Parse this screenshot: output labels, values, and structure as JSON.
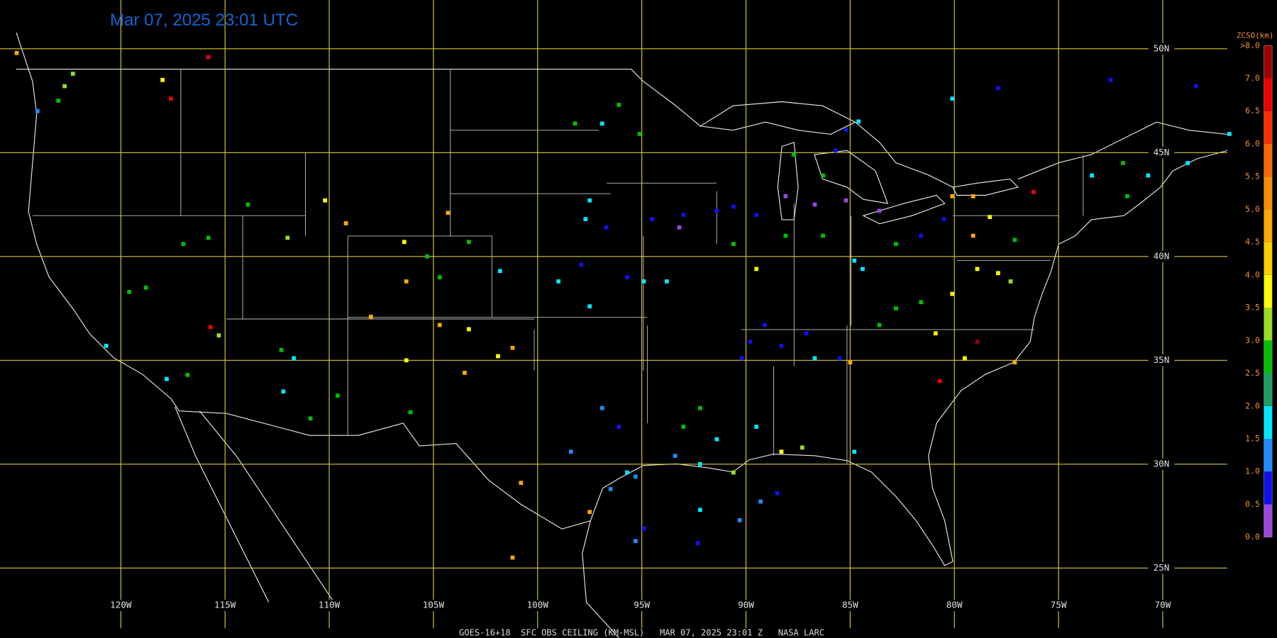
{
  "title": "Mar 07, 2025 23:01 UTC",
  "footer": "GOES-16+18  SFC OBS CEILING (KM-MSL)   MAR 07, 2025 23:01 Z   NASA LARC",
  "map": {
    "lonlim": [
      -125.8,
      -66.9
    ],
    "latlim": [
      22.1,
      52.35
    ],
    "grid_color": "#d8c832",
    "lonticks": [
      {
        "value": -120,
        "label": "120W"
      },
      {
        "value": -115,
        "label": "115W"
      },
      {
        "value": -110,
        "label": "110W"
      },
      {
        "value": -105,
        "label": "105W"
      },
      {
        "value": -100,
        "label": "100W"
      },
      {
        "value": -95,
        "label": "95W"
      },
      {
        "value": -90,
        "label": "90W"
      },
      {
        "value": -85,
        "label": "85W"
      },
      {
        "value": -80,
        "label": "80W"
      },
      {
        "value": -75,
        "label": "75W"
      },
      {
        "value": -70,
        "label": "70W"
      }
    ],
    "latticks": [
      {
        "value": 50,
        "label": "50N"
      },
      {
        "value": 45,
        "label": "45N"
      },
      {
        "value": 40,
        "label": "40N"
      },
      {
        "value": 35,
        "label": "35N"
      },
      {
        "value": 30,
        "label": "30N"
      },
      {
        "value": 25,
        "label": "25N"
      }
    ]
  },
  "colorbar": {
    "title": "ZCSO(km)",
    "ticks": [
      {
        "value": 0,
        "label": "0.0"
      },
      {
        "value": 0.5,
        "label": "0.5"
      },
      {
        "value": 1,
        "label": "1.0"
      },
      {
        "value": 1.5,
        "label": "1.5"
      },
      {
        "value": 2,
        "label": "2.0"
      },
      {
        "value": 2.5,
        "label": "2.5"
      },
      {
        "value": 3,
        "label": "3.0"
      },
      {
        "value": 3.5,
        "label": "3.5"
      },
      {
        "value": 4,
        "label": "4.0"
      },
      {
        "value": 4.5,
        "label": "4.5"
      },
      {
        "value": 5,
        "label": "5.0"
      },
      {
        "value": 5.5,
        "label": "5.5"
      },
      {
        "value": 6,
        "label": "6.0"
      },
      {
        "value": 6.5,
        "label": "6.5"
      },
      {
        "value": 7,
        "label": "7.0"
      },
      {
        "value": 8,
        "label": ">8.0"
      }
    ],
    "colors": [
      "#9a48e0",
      "#1010f0",
      "#1e8cff",
      "#00e8ff",
      "#18a060",
      "#00c000",
      "#98e020",
      "#ffff00",
      "#ffd000",
      "#ffa800",
      "#ff8c00",
      "#ff6400",
      "#ff3000",
      "#f00000",
      "#a00000"
    ]
  },
  "stations": [
    [
      -125.0,
      49.8,
      4.5
    ],
    [
      -124.0,
      47.0,
      1.3
    ],
    [
      -122.7,
      48.2,
      3.3
    ],
    [
      -123.0,
      47.5,
      2.8
    ],
    [
      -122.3,
      48.8,
      3.3
    ],
    [
      -115.8,
      49.6,
      6.5
    ],
    [
      -117.6,
      47.6,
      6.5
    ],
    [
      -118.0,
      48.5,
      3.8
    ],
    [
      -113.9,
      42.5,
      2.8
    ],
    [
      -115.8,
      40.9,
      2.8
    ],
    [
      -117.0,
      40.6,
      2.8
    ],
    [
      -119.6,
      38.3,
      2.8
    ],
    [
      -118.8,
      38.5,
      2.8
    ],
    [
      -120.7,
      35.7,
      1.8
    ],
    [
      -117.8,
      34.1,
      1.8
    ],
    [
      -116.8,
      34.3,
      2.8
    ],
    [
      -115.3,
      36.2,
      3.3
    ],
    [
      -115.7,
      36.6,
      6.5
    ],
    [
      -112.3,
      35.5,
      2.8
    ],
    [
      -111.7,
      35.1,
      1.8
    ],
    [
      -112.2,
      33.5,
      1.8
    ],
    [
      -110.9,
      32.2,
      2.8
    ],
    [
      -109.6,
      33.3,
      2.8
    ],
    [
      -112.0,
      40.9,
      3.3
    ],
    [
      -110.2,
      42.7,
      3.8
    ],
    [
      -109.2,
      41.6,
      4.5
    ],
    [
      -106.4,
      40.7,
      3.8
    ],
    [
      -105.3,
      40.0,
      2.8
    ],
    [
      -106.3,
      38.8,
      4.5
    ],
    [
      -104.7,
      39.0,
      2.8
    ],
    [
      -103.3,
      40.7,
      2.8
    ],
    [
      -101.8,
      39.3,
      1.8
    ],
    [
      -104.3,
      42.1,
      4.5
    ],
    [
      -108.0,
      37.1,
      4.5
    ],
    [
      -106.3,
      35.0,
      3.8
    ],
    [
      -104.7,
      36.7,
      4.5
    ],
    [
      -103.3,
      36.5,
      3.8
    ],
    [
      -101.2,
      35.6,
      4.5
    ],
    [
      -103.5,
      34.4,
      4.5
    ],
    [
      -101.9,
      35.2,
      3.8
    ],
    [
      -106.1,
      32.5,
      2.8
    ],
    [
      -98.2,
      46.4,
      2.8
    ],
    [
      -96.9,
      46.4,
      1.8
    ],
    [
      -96.1,
      47.3,
      2.8
    ],
    [
      -95.1,
      45.9,
      2.8
    ],
    [
      -97.5,
      42.7,
      1.8
    ],
    [
      -97.7,
      41.8,
      1.8
    ],
    [
      -96.7,
      41.4,
      0.8
    ],
    [
      -97.9,
      39.6,
      0.8
    ],
    [
      -99.0,
      38.8,
      1.8
    ],
    [
      -97.5,
      37.6,
      1.8
    ],
    [
      -95.7,
      39.0,
      0.8
    ],
    [
      -94.9,
      38.8,
      1.8
    ],
    [
      -93.8,
      38.8,
      1.8
    ],
    [
      -94.5,
      41.8,
      0.8
    ],
    [
      -93.0,
      42.0,
      0.8
    ],
    [
      -91.4,
      42.2,
      0.8
    ],
    [
      -93.2,
      41.4,
      0.3
    ],
    [
      -90.6,
      42.4,
      0.8
    ],
    [
      -89.5,
      42.0,
      0.8
    ],
    [
      -90.6,
      40.6,
      2.8
    ],
    [
      -89.5,
      39.4,
      3.8
    ],
    [
      -88.1,
      41.0,
      2.8
    ],
    [
      -88.1,
      42.9,
      0.3
    ],
    [
      -86.7,
      42.5,
      0.3
    ],
    [
      -85.2,
      42.7,
      0.3
    ],
    [
      -83.6,
      42.2,
      0.3
    ],
    [
      -85.2,
      46.1,
      0.8
    ],
    [
      -84.6,
      46.5,
      1.8
    ],
    [
      -86.3,
      43.9,
      2.8
    ],
    [
      -85.7,
      45.1,
      0.8
    ],
    [
      -87.7,
      44.9,
      2.8
    ],
    [
      -86.3,
      41.0,
      2.8
    ],
    [
      -84.8,
      39.8,
      1.8
    ],
    [
      -84.4,
      39.4,
      1.8
    ],
    [
      -82.8,
      40.6,
      2.8
    ],
    [
      -81.6,
      41.0,
      0.8
    ],
    [
      -80.5,
      41.8,
      0.8
    ],
    [
      -80.1,
      42.9,
      4.5
    ],
    [
      -79.1,
      42.9,
      4.5
    ],
    [
      -78.3,
      41.9,
      3.8
    ],
    [
      -77.1,
      40.8,
      2.8
    ],
    [
      -79.1,
      41.0,
      4.5
    ],
    [
      -76.2,
      43.1,
      6.5
    ],
    [
      -73.4,
      43.9,
      1.8
    ],
    [
      -71.9,
      44.5,
      2.8
    ],
    [
      -71.7,
      42.9,
      2.8
    ],
    [
      -70.7,
      43.9,
      1.8
    ],
    [
      -68.8,
      44.5,
      1.8
    ],
    [
      -68.4,
      48.2,
      0.8
    ],
    [
      -72.5,
      48.5,
      0.8
    ],
    [
      -77.9,
      48.1,
      0.8
    ],
    [
      -80.1,
      47.6,
      1.8
    ],
    [
      -66.8,
      45.9,
      1.8
    ],
    [
      -78.9,
      39.4,
      3.8
    ],
    [
      -77.3,
      38.8,
      3.3
    ],
    [
      -77.9,
      39.2,
      3.8
    ],
    [
      -80.1,
      38.2,
      3.8
    ],
    [
      -81.6,
      37.8,
      2.8
    ],
    [
      -82.8,
      37.5,
      2.8
    ],
    [
      -83.6,
      36.7,
      2.8
    ],
    [
      -89.1,
      36.7,
      0.8
    ],
    [
      -89.8,
      35.9,
      0.8
    ],
    [
      -90.2,
      35.1,
      0.8
    ],
    [
      -88.3,
      35.7,
      0.8
    ],
    [
      -87.1,
      36.3,
      0.8
    ],
    [
      -86.7,
      35.1,
      1.8
    ],
    [
      -85.5,
      35.1,
      0.8
    ],
    [
      -85.0,
      34.9,
      4.5
    ],
    [
      -80.9,
      36.3,
      3.8
    ],
    [
      -79.5,
      35.1,
      3.8
    ],
    [
      -78.9,
      35.9,
      7.5
    ],
    [
      -77.1,
      34.9,
      4.5
    ],
    [
      -80.7,
      34.0,
      6.5
    ],
    [
      -96.9,
      32.7,
      1.3
    ],
    [
      -96.1,
      31.8,
      0.8
    ],
    [
      -98.4,
      30.6,
      1.3
    ],
    [
      -95.7,
      29.6,
      1.8
    ],
    [
      -95.3,
      29.4,
      1.3
    ],
    [
      -96.5,
      28.8,
      1.3
    ],
    [
      -97.5,
      27.7,
      4.5
    ],
    [
      -93.4,
      30.4,
      1.3
    ],
    [
      -92.2,
      30.0,
      1.8
    ],
    [
      -90.6,
      29.6,
      3.3
    ],
    [
      -89.5,
      31.8,
      1.8
    ],
    [
      -88.3,
      30.6,
      3.8
    ],
    [
      -87.3,
      30.8,
      3.3
    ],
    [
      -91.4,
      31.2,
      1.8
    ],
    [
      -93.0,
      31.8,
      2.8
    ],
    [
      -92.2,
      32.7,
      2.8
    ],
    [
      -100.8,
      29.1,
      4.5
    ],
    [
      -101.2,
      25.5,
      4.5
    ],
    [
      -95.3,
      26.3,
      1.3
    ],
    [
      -92.2,
      27.8,
      1.8
    ],
    [
      -94.9,
      26.9,
      0.8
    ],
    [
      -92.3,
      26.2,
      0.8
    ],
    [
      -90.3,
      27.3,
      1.3
    ],
    [
      -89.3,
      28.2,
      1.3
    ],
    [
      -88.5,
      28.6,
      0.8
    ],
    [
      -84.8,
      30.6,
      1.8
    ]
  ]
}
